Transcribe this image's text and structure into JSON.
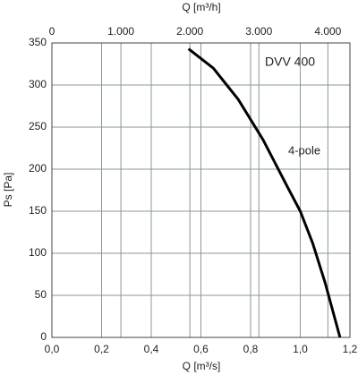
{
  "chart_data": {
    "type": "line",
    "title": "DVV 400",
    "x_label": "Q [m³/s]",
    "x2_label": "Q [m³/h]",
    "y_label": "Ps [Pa]",
    "x": [
      0.55,
      0.65,
      0.75,
      0.85,
      0.95,
      1.0,
      1.05,
      1.1,
      1.16
    ],
    "series": [
      {
        "name": "4-pole",
        "color": "#000000",
        "values": [
          343,
          320,
          283,
          235,
          178,
          150,
          112,
          65,
          0
        ]
      }
    ],
    "xlim": [
      0,
      1.2
    ],
    "xticks": [
      {
        "value": 0,
        "label": "0,0"
      },
      {
        "value": 0.2,
        "label": "0,2"
      },
      {
        "value": 0.4,
        "label": "0,4"
      },
      {
        "value": 0.6,
        "label": "0,6"
      },
      {
        "value": 0.8,
        "label": "0,8"
      },
      {
        "value": 1.0,
        "label": "1,0"
      },
      {
        "value": 1.2,
        "label": "1,2"
      }
    ],
    "x2lim": [
      0,
      4320
    ],
    "x2ticks": [
      0,
      {
        "value": 1000,
        "label": "1.000"
      },
      {
        "value": 2000,
        "label": "2.000"
      },
      {
        "value": 3000,
        "label": "3.000"
      },
      {
        "value": 4000,
        "label": "4.000"
      }
    ],
    "ylim": [
      0,
      350
    ],
    "yticks": [
      0,
      50,
      100,
      150,
      200,
      250,
      300,
      350
    ],
    "grid": true
  }
}
